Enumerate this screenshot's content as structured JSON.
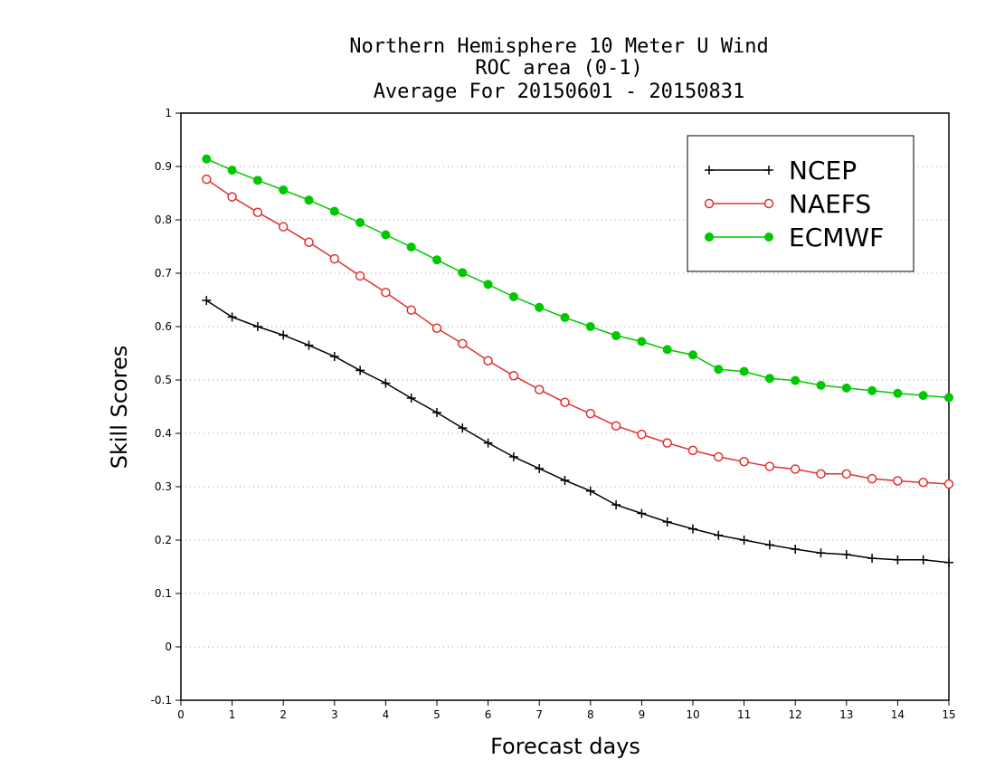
{
  "chart_data": {
    "type": "line",
    "title_lines": [
      "Northern Hemisphere 10 Meter U Wind",
      "ROC area (0-1)",
      "Average For 20150601 - 20150831"
    ],
    "xlabel": "Forecast days",
    "ylabel": "Skill Scores",
    "xlim": [
      0,
      15
    ],
    "ylim": [
      -0.1,
      1
    ],
    "x_ticks": [
      "0",
      "1",
      "2",
      "3",
      "4",
      "5",
      "6",
      "7",
      "8",
      "9",
      "10",
      "11",
      "12",
      "13",
      "14",
      "15"
    ],
    "y_ticks": [
      "-0.1",
      "0",
      "0.1",
      "0.2",
      "0.3",
      "0.4",
      "0.5",
      "0.6",
      "0.7",
      "0.8",
      "0.9",
      "1"
    ],
    "grid": "horizontal dotted",
    "legend_position": "top-right",
    "x": [
      0.5,
      1,
      1.5,
      2,
      2.5,
      3,
      3.5,
      4,
      4.5,
      5,
      5.5,
      6,
      6.5,
      7,
      7.5,
      8,
      8.5,
      9,
      9.5,
      10,
      10.5,
      11,
      11.5,
      12,
      12.5,
      13,
      13.5,
      14,
      14.5,
      15
    ],
    "series": [
      {
        "name": "NCEP",
        "color": "#000000",
        "marker": "plus",
        "values": [
          0.649,
          0.618,
          0.6,
          0.584,
          0.565,
          0.544,
          0.518,
          0.494,
          0.466,
          0.439,
          0.41,
          0.382,
          0.356,
          0.334,
          0.312,
          0.292,
          0.266,
          0.25,
          0.234,
          0.221,
          0.209,
          0.2,
          0.191,
          0.183,
          0.176,
          0.173,
          0.166,
          0.163,
          0.163,
          0.158
        ]
      },
      {
        "name": "NAEFS",
        "color": "#e03030",
        "marker": "open-circle",
        "values": [
          0.876,
          0.843,
          0.814,
          0.787,
          0.758,
          0.727,
          0.695,
          0.664,
          0.631,
          0.597,
          0.568,
          0.536,
          0.508,
          0.482,
          0.458,
          0.437,
          0.414,
          0.398,
          0.382,
          0.368,
          0.356,
          0.347,
          0.338,
          0.333,
          0.324,
          0.324,
          0.315,
          0.311,
          0.308,
          0.305
        ]
      },
      {
        "name": "ECMWF",
        "color": "#00c800",
        "marker": "filled-circle",
        "values": [
          0.914,
          0.893,
          0.874,
          0.856,
          0.837,
          0.816,
          0.795,
          0.772,
          0.749,
          0.725,
          0.701,
          0.679,
          0.656,
          0.636,
          0.617,
          0.6,
          0.583,
          0.572,
          0.557,
          0.547,
          0.52,
          0.516,
          0.503,
          0.499,
          0.49,
          0.485,
          0.48,
          0.475,
          0.471,
          0.467
        ]
      }
    ]
  }
}
